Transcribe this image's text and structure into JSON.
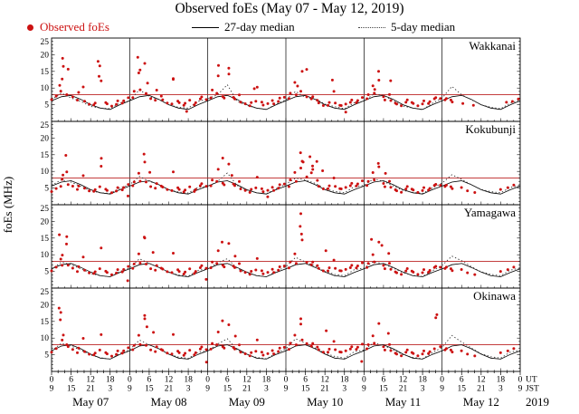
{
  "title": "Observed foEs (May 07 - May 12, 2019)",
  "ylabel": "foEs (MHz)",
  "legend": {
    "observed": {
      "label": "Observed foEs",
      "color": "#cc1111"
    },
    "median27": {
      "label": "27-day median"
    },
    "median5": {
      "label": "5-day median"
    }
  },
  "colors": {
    "observed": "#cc1111",
    "threshold": "#bb2222",
    "median27": "#000000",
    "median5": "#333333"
  },
  "threshold_mhz": 8,
  "axis": {
    "ut_label": "UT",
    "jst_label": "JST",
    "year": "2019",
    "jst_offset": 9,
    "hours_total": 144,
    "label_step_hours": 6,
    "days": [
      "May 07",
      "May 08",
      "May 09",
      "May 10",
      "May 11",
      "May 12"
    ]
  },
  "chart_data": {
    "type": "scatter",
    "title": "Observed foEs (May 07 - May 12, 2019)",
    "ylabel": "foEs (MHz)",
    "ylim": [
      0,
      25
    ],
    "yticks": [
      5,
      10,
      15,
      20,
      25
    ],
    "x_unit": "hours since May 07 2019 00:00 UT",
    "xlim": [
      0,
      144
    ],
    "legend_entries": [
      "Observed foEs",
      "27-day median",
      "5-day median"
    ],
    "stations": [
      {
        "name": "Wakkanai",
        "median27_day": [
          6.2,
          7.4,
          7.8,
          6.6,
          5.0,
          4.0,
          3.6,
          5.0,
          6.2
        ],
        "median5_3h": [
          6.5,
          8.5,
          7.0,
          6.0,
          4.5,
          4.0,
          3.8,
          5.5,
          6.2,
          9.5,
          7.5,
          6.5,
          5.0,
          4.2,
          4.0,
          6.0,
          6.8,
          8.0,
          11.0,
          6.0,
          4.8,
          4.0,
          3.6,
          5.2,
          6.5,
          9.0,
          7.2,
          6.8,
          5.2,
          4.4,
          3.8,
          5.6,
          6.0,
          8.2,
          7.8,
          6.2,
          4.6,
          4.0,
          3.5,
          5.4,
          7.0,
          10.5,
          8.0,
          6.5,
          5.0,
          4.2,
          3.8,
          5.5,
          6.5
        ],
        "observed_hourly": [
          6.8,
          7.5,
          9.2,
          12.5,
          8.0,
          15.8,
          7.2,
          6.4,
          8.9,
          10.2,
          6.1,
          5.4,
          4.9,
          5.6,
          16.4,
          12.1,
          5.8,
          5.1,
          4.6,
          5.3,
          6.0,
          5.5,
          6.4,
          7.0,
          7.2,
          8.8,
          14.5,
          9.6,
          17.2,
          8.4,
          7.0,
          6.2,
          9.4,
          7.8,
          6.4,
          5.6,
          5.0,
          12.8,
          6.2,
          5.4,
          4.8,
          5.6,
          6.2,
          5.0,
          5.8,
          6.6,
          7.4,
          6.8,
          7.0,
          9.5,
          8.2,
          13.6,
          7.6,
          6.8,
          16.0,
          7.4,
          6.6,
          8.0,
          6.0,
          5.2,
          4.8,
          5.4,
          6.0,
          10.4,
          5.6,
          4.9,
          5.5,
          6.1,
          5.3,
          6.2,
          6.9,
          7.3,
          6.6,
          8.4,
          11.8,
          7.8,
          9.0,
          15.2,
          7.2,
          6.8,
          7.6,
          6.2,
          5.6,
          5.0,
          4.7,
          5.8,
          8.8,
          5.5,
          5.0,
          4.6,
          5.2,
          5.9,
          6.3,
          5.7,
          6.5,
          7.1,
          6.9,
          7.8,
          10.6,
          8.6,
          12.2,
          7.4,
          6.6,
          7.9,
          6.3,
          5.7,
          5.1,
          4.8,
          5.5,
          6.4,
          5.8,
          5.2,
          4.7,
          5.4,
          6.0,
          5.4,
          6.1,
          6.7,
          7.2,
          6.6,
          6.4,
          7.0,
          6.2,
          5.8,
          null,
          null,
          5.4,
          null,
          null,
          4.9,
          null,
          null,
          null,
          null,
          null,
          null,
          null,
          null,
          null,
          5.6,
          null,
          6.2,
          null,
          6.8
        ],
        "observed_extra": [
          [
            2.5,
            10.8
          ],
          [
            3.4,
            18.9
          ],
          [
            3.6,
            16.5
          ],
          [
            14.3,
            18.0
          ],
          [
            14.6,
            13.5
          ],
          [
            26.5,
            19.2
          ],
          [
            27.2,
            15.4
          ],
          [
            29.5,
            11.5
          ],
          [
            37.4,
            12.6
          ],
          [
            41.5,
            3.0
          ],
          [
            51.3,
            16.8
          ],
          [
            54.5,
            14.2
          ],
          [
            62.3,
            9.8
          ],
          [
            75.6,
            10.6
          ],
          [
            78.4,
            15.6
          ],
          [
            86.3,
            12.4
          ],
          [
            90.4,
            2.8
          ],
          [
            99.3,
            9.6
          ],
          [
            100.5,
            15.0
          ],
          [
            104.2,
            12.2
          ]
        ]
      },
      {
        "name": "Kokubunji",
        "median27_day": [
          5.6,
          6.8,
          7.2,
          6.0,
          4.5,
          3.6,
          3.2,
          4.5,
          5.6
        ],
        "median5_3h": [
          5.8,
          7.5,
          6.8,
          5.5,
          4.2,
          3.6,
          3.4,
          5.0,
          6.0,
          8.5,
          7.0,
          6.0,
          4.5,
          3.8,
          3.5,
          5.2,
          5.5,
          7.0,
          9.5,
          5.8,
          4.4,
          3.6,
          3.3,
          4.8,
          6.2,
          8.0,
          7.4,
          6.4,
          4.8,
          4.0,
          3.6,
          5.4,
          5.8,
          7.8,
          7.0,
          5.6,
          4.3,
          3.7,
          3.4,
          5.0,
          6.5,
          9.0,
          7.6,
          6.0,
          4.6,
          3.9,
          3.6,
          5.2,
          5.8
        ],
        "observed_hourly": [
          4.2,
          4.8,
          5.6,
          7.4,
          9.8,
          6.2,
          5.4,
          4.6,
          5.8,
          8.6,
          5.0,
          4.4,
          3.9,
          4.6,
          5.2,
          11.5,
          4.8,
          4.1,
          3.6,
          4.3,
          5.0,
          4.5,
          5.4,
          6.0,
          5.8,
          6.6,
          9.4,
          7.2,
          12.6,
          6.8,
          5.6,
          4.8,
          6.4,
          5.8,
          5.2,
          4.6,
          4.0,
          9.8,
          5.2,
          4.4,
          3.8,
          4.6,
          5.2,
          4.0,
          4.8,
          5.6,
          6.4,
          5.8,
          5.6,
          7.5,
          6.8,
          10.6,
          6.6,
          5.8,
          12.2,
          6.4,
          5.6,
          7.0,
          5.0,
          4.2,
          3.8,
          4.4,
          5.0,
          8.4,
          4.6,
          3.9,
          4.5,
          5.1,
          4.3,
          5.2,
          5.9,
          6.3,
          5.2,
          7.4,
          9.8,
          6.8,
          11.0,
          13.2,
          8.2,
          9.6,
          10.8,
          7.2,
          5.6,
          5.0,
          4.7,
          5.8,
          7.8,
          5.5,
          5.0,
          4.6,
          5.2,
          5.9,
          6.3,
          5.7,
          6.5,
          7.1,
          5.9,
          6.8,
          9.6,
          7.6,
          11.2,
          6.4,
          5.6,
          6.9,
          5.3,
          4.7,
          4.1,
          3.8,
          4.5,
          5.4,
          4.8,
          4.2,
          3.7,
          4.4,
          5.0,
          4.4,
          5.1,
          5.7,
          6.2,
          5.6,
          5.4,
          6.0,
          5.2,
          4.8,
          null,
          5.0,
          null,
          4.4,
          null,
          null,
          3.9,
          null,
          null,
          null,
          null,
          null,
          null,
          4.6,
          null,
          null,
          5.2,
          null,
          5.8,
          null
        ],
        "observed_extra": [
          [
            3.5,
            8.9
          ],
          [
            4.4,
            14.8
          ],
          [
            15.3,
            13.9
          ],
          [
            23.5,
            2.6
          ],
          [
            28.4,
            15.2
          ],
          [
            30.2,
            9.7
          ],
          [
            52.6,
            14.0
          ],
          [
            55.4,
            8.8
          ],
          [
            66.4,
            2.4
          ],
          [
            76.5,
            15.6
          ],
          [
            77.3,
            12.8
          ],
          [
            79.4,
            14.4
          ],
          [
            80.2,
            11.6
          ],
          [
            81.5,
            13.0
          ],
          [
            83.3,
            10.2
          ],
          [
            100.4,
            12.4
          ],
          [
            102.6,
            9.4
          ]
        ]
      },
      {
        "name": "Yamagawa",
        "median27_day": [
          5.8,
          7.0,
          7.4,
          6.2,
          4.8,
          3.7,
          3.4,
          4.7,
          5.8
        ],
        "median5_3h": [
          5.6,
          7.8,
          7.0,
          5.8,
          4.4,
          3.7,
          3.4,
          5.0,
          6.0,
          8.8,
          7.4,
          6.2,
          4.7,
          3.9,
          3.6,
          5.3,
          5.8,
          7.6,
          8.8,
          6.0,
          4.5,
          3.8,
          3.4,
          5.0,
          6.4,
          9.2,
          7.8,
          6.6,
          5.0,
          4.1,
          3.7,
          5.5,
          6.0,
          8.0,
          7.2,
          6.0,
          4.6,
          3.8,
          3.5,
          5.2,
          6.8,
          9.6,
          8.2,
          6.4,
          4.9,
          4.1,
          3.7,
          5.4,
          6.0
        ],
        "observed_hourly": [
          5.4,
          6.2,
          8.8,
          6.6,
          15.4,
          7.0,
          5.8,
          5.0,
          6.6,
          9.2,
          5.4,
          4.8,
          4.3,
          5.0,
          5.6,
          12.0,
          5.2,
          4.5,
          4.0,
          4.7,
          5.4,
          4.9,
          5.8,
          6.4,
          6.0,
          7.0,
          10.2,
          7.6,
          14.8,
          7.2,
          6.0,
          5.2,
          6.8,
          6.2,
          5.6,
          5.0,
          4.4,
          10.4,
          5.6,
          4.8,
          4.2,
          5.0,
          5.6,
          4.4,
          5.2,
          6.0,
          6.8,
          6.2,
          6.0,
          7.9,
          7.2,
          11.2,
          7.0,
          6.2,
          13.4,
          6.8,
          6.0,
          7.4,
          5.4,
          4.6,
          4.2,
          4.8,
          5.4,
          9.0,
          5.0,
          4.3,
          4.9,
          5.5,
          4.7,
          5.6,
          6.3,
          6.7,
          5.8,
          7.8,
          10.4,
          7.2,
          22.3,
          14.6,
          7.6,
          7.0,
          8.0,
          6.6,
          6.0,
          5.4,
          5.1,
          6.2,
          8.2,
          5.9,
          5.4,
          5.0,
          5.6,
          6.3,
          6.7,
          6.1,
          6.9,
          7.5,
          6.3,
          7.2,
          10.0,
          8.0,
          13.6,
          6.8,
          6.0,
          7.3,
          5.7,
          5.1,
          4.5,
          4.2,
          4.9,
          5.8,
          5.2,
          4.6,
          4.1,
          4.8,
          5.4,
          4.8,
          5.5,
          6.1,
          6.6,
          6.0,
          5.8,
          6.4,
          5.6,
          5.2,
          null,
          5.4,
          null,
          4.8,
          null,
          null,
          4.3,
          null,
          null,
          null,
          null,
          null,
          null,
          5.0,
          null,
          null,
          5.6,
          null,
          6.2,
          null
        ],
        "observed_extra": [
          [
            2.4,
            16.0
          ],
          [
            3.3,
            9.9
          ],
          [
            4.6,
            13.2
          ],
          [
            23.4,
            2.2
          ],
          [
            28.5,
            15.3
          ],
          [
            31.2,
            10.7
          ],
          [
            47.5,
            2.6
          ],
          [
            52.4,
            13.8
          ],
          [
            56.4,
            9.6
          ],
          [
            76.4,
            18.5
          ],
          [
            76.8,
            16.2
          ],
          [
            84.3,
            11.2
          ],
          [
            98.3,
            14.6
          ],
          [
            101.5,
            12.8
          ],
          [
            103.6,
            10.4
          ]
        ]
      },
      {
        "name": "Okinawa",
        "median27_day": [
          6.2,
          7.6,
          8.0,
          6.8,
          5.2,
          4.0,
          3.7,
          5.1,
          6.2
        ],
        "median5_3h": [
          6.2,
          8.4,
          7.6,
          6.4,
          4.9,
          4.1,
          3.7,
          5.4,
          6.5,
          9.4,
          8.0,
          6.8,
          5.2,
          4.3,
          3.9,
          5.7,
          6.2,
          8.2,
          9.8,
          6.5,
          5.0,
          4.2,
          3.8,
          5.4,
          6.8,
          9.8,
          8.4,
          7.0,
          5.4,
          4.5,
          4.0,
          5.9,
          6.4,
          8.6,
          7.8,
          6.5,
          5.0,
          4.2,
          3.8,
          5.6,
          7.2,
          10.8,
          8.8,
          7.0,
          5.3,
          4.4,
          4.0,
          5.8,
          6.4
        ],
        "observed_hourly": [
          6.0,
          6.8,
          17.8,
          9.2,
          8.0,
          7.6,
          6.4,
          5.6,
          7.2,
          9.8,
          6.0,
          5.4,
          4.9,
          5.6,
          6.2,
          11.0,
          5.8,
          5.1,
          4.6,
          5.3,
          6.0,
          5.5,
          6.4,
          7.0,
          6.6,
          7.6,
          10.8,
          8.2,
          15.6,
          7.8,
          6.6,
          5.8,
          7.4,
          6.8,
          6.2,
          5.6,
          5.0,
          11.0,
          6.2,
          5.4,
          4.8,
          5.6,
          6.2,
          5.0,
          5.8,
          6.6,
          7.4,
          6.8,
          6.6,
          8.5,
          7.8,
          11.8,
          7.6,
          6.8,
          14.0,
          7.4,
          6.6,
          8.0,
          6.0,
          5.2,
          4.8,
          5.4,
          6.0,
          9.6,
          5.6,
          4.9,
          5.5,
          6.1,
          5.3,
          6.2,
          6.9,
          7.3,
          6.4,
          8.4,
          11.0,
          7.8,
          14.2,
          9.6,
          8.2,
          7.6,
          8.6,
          7.2,
          6.6,
          6.0,
          5.7,
          6.8,
          8.8,
          6.5,
          6.0,
          5.6,
          6.2,
          6.9,
          7.3,
          6.7,
          7.5,
          8.1,
          6.9,
          7.8,
          10.6,
          8.6,
          14.2,
          7.4,
          6.6,
          7.9,
          6.3,
          5.7,
          5.1,
          4.8,
          5.5,
          6.4,
          5.8,
          5.2,
          4.7,
          5.4,
          6.0,
          5.4,
          6.1,
          6.7,
          16.2,
          7.2,
          6.4,
          7.0,
          6.2,
          5.8,
          null,
          6.0,
          null,
          5.4,
          null,
          null,
          4.9,
          null,
          null,
          null,
          null,
          null,
          null,
          5.6,
          null,
          null,
          6.2,
          null,
          6.8,
          null
        ],
        "observed_extra": [
          [
            2.3,
            19.0
          ],
          [
            2.7,
            15.5
          ],
          [
            3.6,
            10.9
          ],
          [
            28.6,
            16.8
          ],
          [
            29.3,
            13.4
          ],
          [
            31.3,
            11.7
          ],
          [
            47.6,
            2.8
          ],
          [
            52.5,
            15.2
          ],
          [
            56.5,
            10.6
          ],
          [
            76.6,
            15.8
          ],
          [
            84.4,
            12.2
          ],
          [
            95.3,
            3.0
          ],
          [
            103.5,
            11.4
          ],
          [
            118.4,
            17.0
          ]
        ]
      }
    ]
  }
}
